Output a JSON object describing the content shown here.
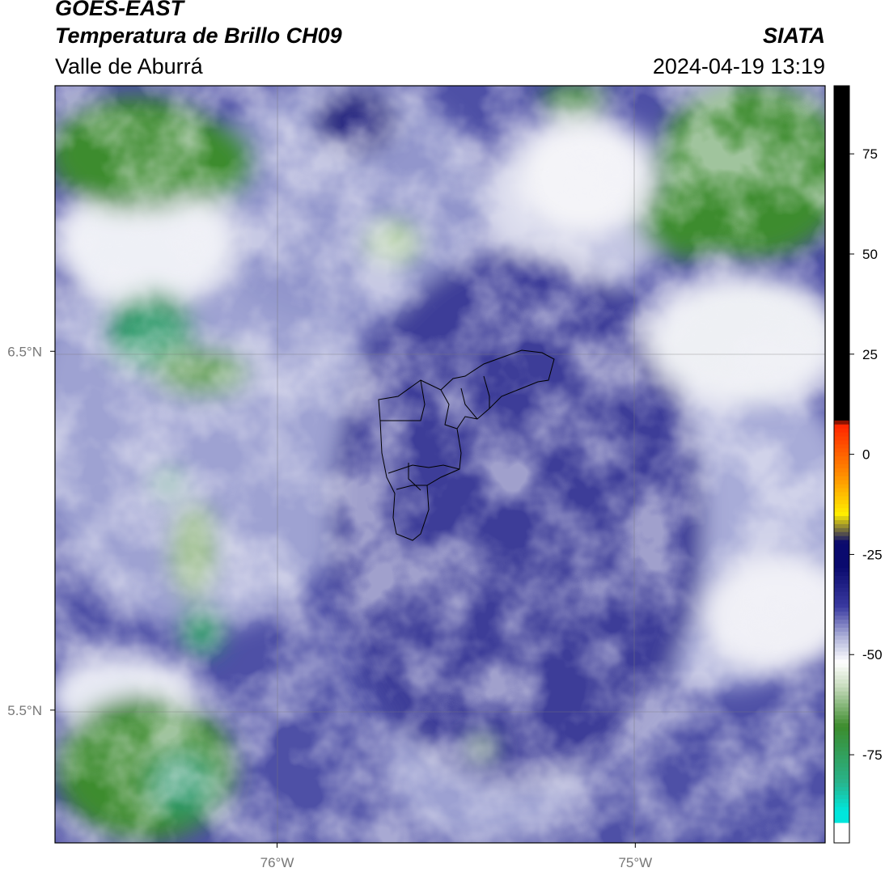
{
  "header": {
    "satellite": "GOES-EAST",
    "product": "Temperatura de Brillo CH09",
    "region": "Valle de Aburrá",
    "brand": "SIATA",
    "timestamp": "2024-04-19 13:19"
  },
  "map": {
    "lat_ticks": [
      {
        "value": 6.5,
        "label": "6.5°N"
      },
      {
        "value": 5.5,
        "label": "5.5°N"
      }
    ],
    "lon_ticks": [
      {
        "value": -76.0,
        "label": "76°W"
      },
      {
        "value": -75.0,
        "label": "75°W"
      }
    ],
    "extent": {
      "lon_min": -76.62,
      "lon_max": -74.47,
      "lat_min": 5.13,
      "lat_max": 7.24
    }
  },
  "colorbar": {
    "range": [
      -97,
      92
    ],
    "ticks": [
      {
        "value": 75,
        "label": "75"
      },
      {
        "value": 50,
        "label": "50"
      },
      {
        "value": 25,
        "label": "25"
      },
      {
        "value": 0,
        "label": "0"
      },
      {
        "value": -25,
        "label": "-25"
      },
      {
        "value": -50,
        "label": "-50"
      },
      {
        "value": -75,
        "label": "-75"
      }
    ],
    "colors": {
      "black": "#000000",
      "red": "#ff2000",
      "orange": "#ff8c00",
      "yellow": "#ffee00",
      "dark_navy": "#0a0a6e",
      "indigo": "#3a3aa0",
      "lavender": "#b4b8dc",
      "white": "#ffffff",
      "light_green": "#c8dcbe",
      "green": "#3c8c2d",
      "teal": "#28b48c",
      "cyan": "#00e6dc"
    }
  }
}
